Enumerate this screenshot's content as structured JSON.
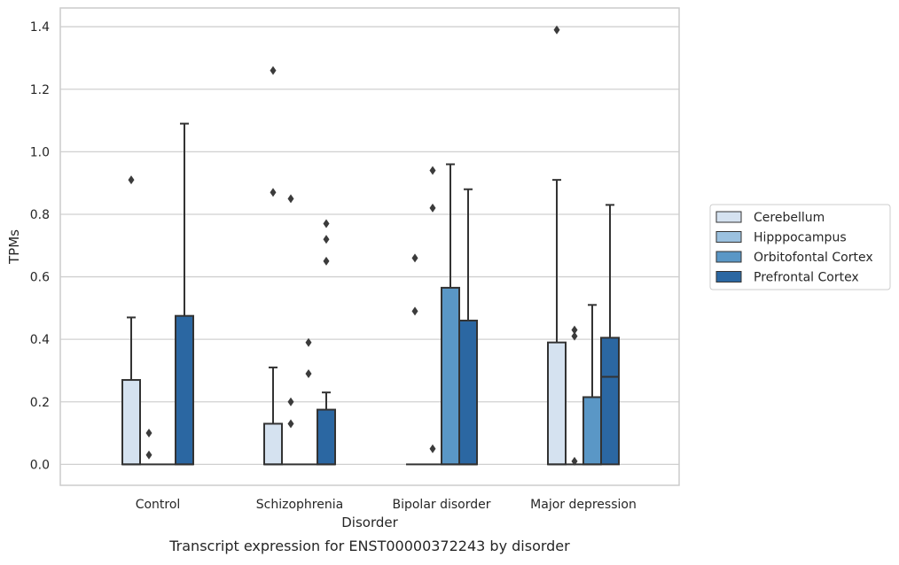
{
  "caption": "Transcript expression for ENST00000372243 by disorder",
  "chart_data": {
    "type": "box",
    "xlabel": "Disorder",
    "ylabel": "TPMs",
    "ylim": [
      -0.067,
      1.46
    ],
    "yticks": [
      0.0,
      0.2,
      0.4,
      0.6,
      0.8,
      1.0,
      1.2,
      1.4
    ],
    "ytick_labels": [
      "0.0",
      "0.2",
      "0.4",
      "0.6",
      "0.8",
      "1.0",
      "1.2",
      "1.4"
    ],
    "grid": "horizontal",
    "legend_position": "right",
    "categories": [
      "Control",
      "Schizophrenia",
      "Bipolar disorder",
      "Major depression"
    ],
    "series": [
      {
        "name": "Cerebellum",
        "color": "#d5e2f0",
        "boxes": [
          {
            "whislo": 0,
            "q1": 0,
            "med": 0,
            "q3": 0.27,
            "whishi": 0.47,
            "fliers": [
              0.91
            ]
          },
          {
            "whislo": 0,
            "q1": 0,
            "med": 0,
            "q3": 0.13,
            "whishi": 0.31,
            "fliers": [
              0.87,
              1.26
            ]
          },
          {
            "whislo": 0,
            "q1": 0,
            "med": 0,
            "q3": 0,
            "whishi": 0,
            "fliers": [
              0.49,
              0.66
            ]
          },
          {
            "whislo": 0,
            "q1": 0,
            "med": 0,
            "q3": 0.39,
            "whishi": 0.91,
            "fliers": [
              1.39
            ]
          }
        ]
      },
      {
        "name": "Hipppocampus",
        "color": "#9bc1df",
        "boxes": [
          {
            "whislo": 0,
            "q1": 0,
            "med": 0,
            "q3": 0,
            "whishi": 0,
            "fliers": [
              0.03,
              0.1
            ]
          },
          {
            "whislo": 0,
            "q1": 0,
            "med": 0,
            "q3": 0,
            "whishi": 0,
            "fliers": [
              0.13,
              0.2,
              0.85
            ]
          },
          {
            "whislo": 0,
            "q1": 0,
            "med": 0,
            "q3": 0,
            "whishi": 0,
            "fliers": [
              0.05,
              0.82,
              0.94
            ]
          },
          {
            "whislo": 0,
            "q1": 0,
            "med": 0,
            "q3": 0,
            "whishi": 0,
            "fliers": [
              0.01,
              0.41,
              0.43
            ]
          }
        ]
      },
      {
        "name": "Orbitofontal Cortex",
        "color": "#5a97c6",
        "boxes": [
          {
            "whislo": 0,
            "q1": 0,
            "med": 0,
            "q3": 0,
            "whishi": 0,
            "fliers": []
          },
          {
            "whislo": 0,
            "q1": 0,
            "med": 0,
            "q3": 0,
            "whishi": 0,
            "fliers": [
              0.29,
              0.39
            ]
          },
          {
            "whislo": 0,
            "q1": 0,
            "med": 0,
            "q3": 0.565,
            "whishi": 0.96,
            "fliers": []
          },
          {
            "whislo": 0,
            "q1": 0,
            "med": 0,
            "q3": 0.215,
            "whishi": 0.51,
            "fliers": []
          }
        ]
      },
      {
        "name": "Prefrontal Cortex",
        "color": "#2b67a2",
        "boxes": [
          {
            "whislo": 0,
            "q1": 0,
            "med": 0,
            "q3": 0.475,
            "whishi": 1.09,
            "fliers": []
          },
          {
            "whislo": 0,
            "q1": 0,
            "med": 0,
            "q3": 0.175,
            "whishi": 0.23,
            "fliers": [
              0.65,
              0.72,
              0.77
            ]
          },
          {
            "whislo": 0,
            "q1": 0,
            "med": 0,
            "q3": 0.46,
            "whishi": 0.88,
            "fliers": []
          },
          {
            "whislo": 0,
            "q1": 0,
            "med": 0.28,
            "q3": 0.405,
            "whishi": 0.83,
            "fliers": []
          }
        ]
      }
    ]
  }
}
